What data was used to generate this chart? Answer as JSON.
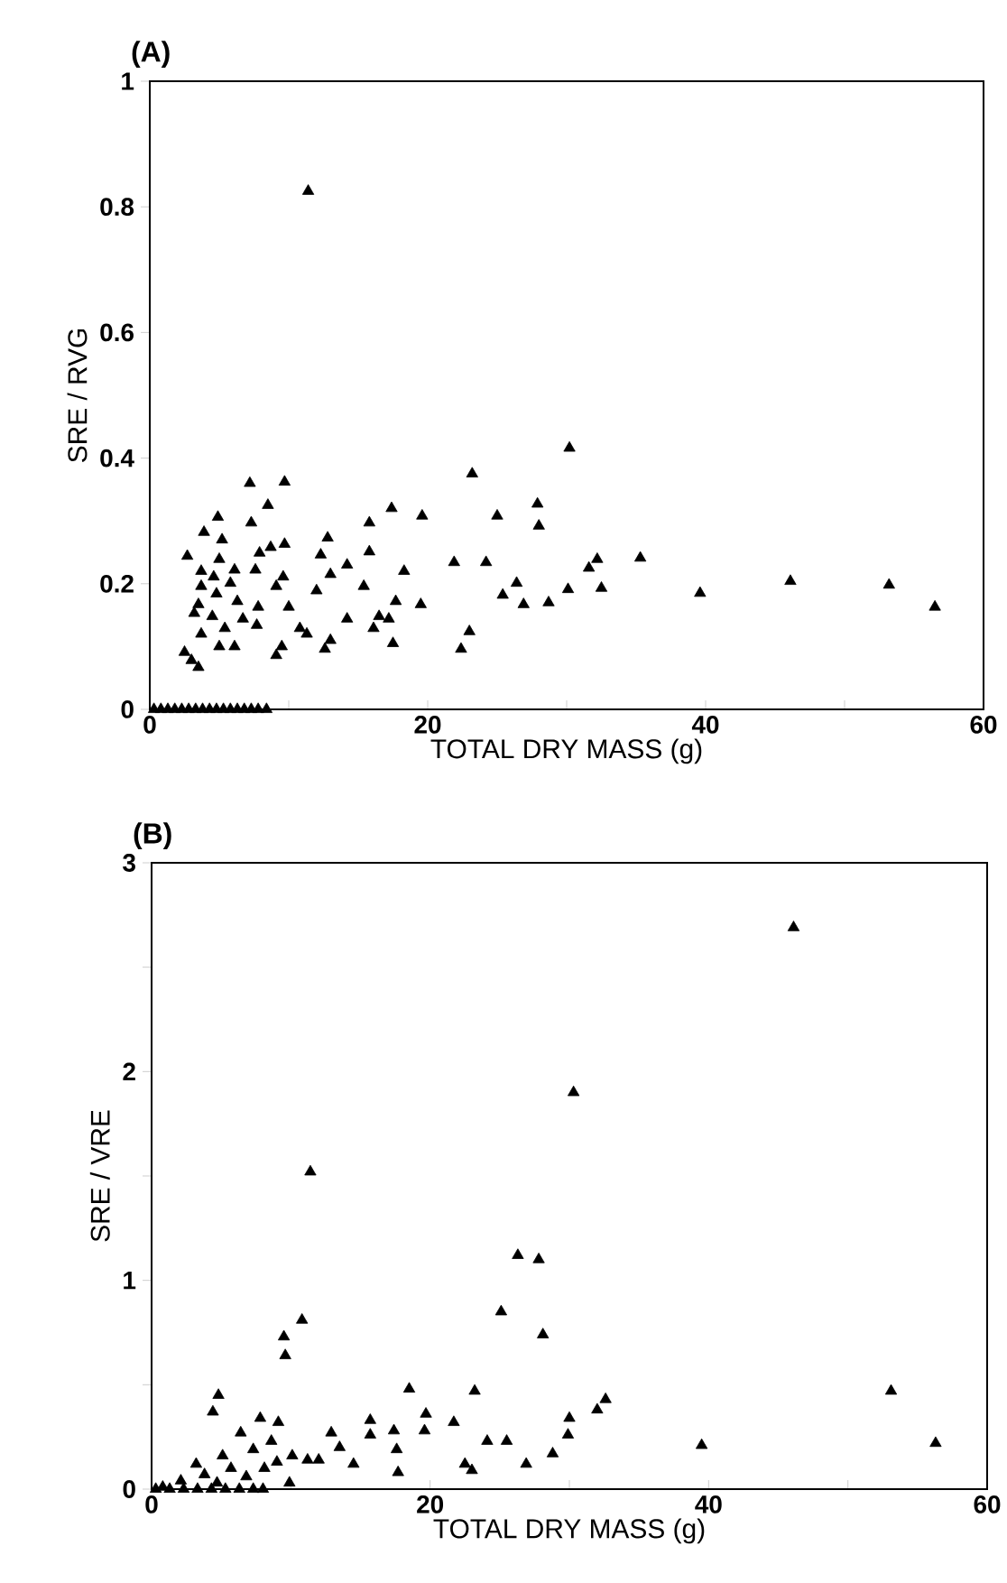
{
  "chart_data": [
    {
      "type": "scatter",
      "title": "(A)",
      "xlabel": "TOTAL DRY MASS (g)",
      "ylabel": "SRE / RVG",
      "xlim": [
        0,
        60
      ],
      "ylim": [
        0,
        1
      ],
      "xticks": [
        0,
        {
          "value": 10,
          "label": null
        },
        20,
        {
          "value": 30,
          "label": null
        },
        40,
        {
          "value": 50,
          "label": null
        },
        60
      ],
      "yticks": [
        0,
        0.2,
        0.4,
        0.6,
        0.8,
        1
      ],
      "grid": false,
      "marker": "triangle",
      "series": [
        {
          "color": "#000000",
          "x": [
            11.4,
            30.2,
            23.2,
            19.6,
            17.4,
            15.8,
            25.0,
            27.9,
            28.0,
            21.9,
            24.2,
            35.3,
            32.2,
            31.6,
            32.5,
            30.1,
            26.4,
            25.4,
            26.9,
            28.7,
            39.6,
            46.1,
            53.2,
            56.5,
            18.3,
            17.7,
            19.5,
            17.2,
            16.1,
            16.5,
            17.5,
            23.0,
            22.4,
            14.2,
            15.4,
            14.2,
            15.8,
            13.0,
            12.8,
            12.3,
            12.0,
            10.8,
            11.3,
            9.5,
            9.1,
            13.0,
            12.6,
            10.0,
            9.6,
            9.7,
            8.7,
            8.5,
            9.7,
            7.2,
            7.3,
            7.9,
            7.6,
            9.1,
            7.8,
            7.7,
            6.3,
            5.8,
            6.1,
            5.0,
            5.2,
            4.9,
            3.9,
            2.7,
            3.7,
            3.7,
            3.5,
            3.2,
            4.5,
            3.7,
            5.4,
            5.0,
            6.1,
            2.5,
            3.0,
            3.5,
            4.8,
            6.7,
            4.6,
            0.3,
            0.8,
            1.3,
            1.8,
            2.3,
            2.8,
            3.3,
            3.8,
            4.3,
            4.8,
            5.3,
            5.8,
            6.3,
            6.8,
            7.3,
            7.8,
            8.4
          ],
          "values": [
            0.825,
            0.416,
            0.375,
            0.308,
            0.32,
            0.297,
            0.308,
            0.327,
            0.292,
            0.234,
            0.234,
            0.241,
            0.239,
            0.225,
            0.193,
            0.191,
            0.201,
            0.182,
            0.167,
            0.17,
            0.185,
            0.204,
            0.198,
            0.163,
            0.22,
            0.172,
            0.167,
            0.144,
            0.129,
            0.148,
            0.105,
            0.124,
            0.096,
            0.144,
            0.196,
            0.23,
            0.251,
            0.215,
            0.273,
            0.246,
            0.189,
            0.129,
            0.12,
            0.1,
            0.086,
            0.11,
            0.096,
            0.163,
            0.211,
            0.263,
            0.258,
            0.325,
            0.362,
            0.36,
            0.297,
            0.249,
            0.222,
            0.196,
            0.163,
            0.134,
            0.172,
            0.201,
            0.222,
            0.239,
            0.27,
            0.306,
            0.282,
            0.244,
            0.22,
            0.196,
            0.167,
            0.153,
            0.148,
            0.12,
            0.129,
            0.1,
            0.1,
            0.091,
            0.078,
            0.067,
            0.184,
            0.144,
            0.211,
            0,
            0,
            0,
            0,
            0,
            0,
            0,
            0,
            0,
            0,
            0,
            0,
            0,
            0,
            0,
            0,
            0
          ]
        }
      ]
    },
    {
      "type": "scatter",
      "title": "(B)",
      "xlabel": "TOTAL DRY MASS (g)",
      "ylabel": "SRE / VRE",
      "xlim": [
        0,
        60
      ],
      "ylim": [
        0,
        3
      ],
      "xticks": [
        0,
        {
          "value": 10,
          "label": null
        },
        20,
        {
          "value": 30,
          "label": null
        },
        40,
        {
          "value": 50,
          "label": null
        },
        60
      ],
      "yticks": [
        0,
        {
          "value": 0.5,
          "label": null
        },
        1,
        {
          "value": 1.5,
          "label": null
        },
        2,
        {
          "value": 2.5,
          "label": null
        },
        3
      ],
      "grid": false,
      "marker": "triangle",
      "series": [
        {
          "color": "#000000",
          "x": [
            46.1,
            30.3,
            11.4,
            26.3,
            27.8,
            25.1,
            28.1,
            10.8,
            9.5,
            9.6,
            4.8,
            4.4,
            18.5,
            23.2,
            53.1,
            32.6,
            32.0,
            30.0,
            29.9,
            19.7,
            19.6,
            21.7,
            24.1,
            25.5,
            28.8,
            26.9,
            22.5,
            23.0,
            39.5,
            56.3,
            15.7,
            15.7,
            17.4,
            17.6,
            17.7,
            12.9,
            13.5,
            14.5,
            12.0,
            7.8,
            9.1,
            8.6,
            6.4,
            9.9,
            10.1,
            7.3,
            5.1,
            3.2,
            3.8,
            5.7,
            6.8,
            8.1,
            2.1,
            0.8,
            4.7,
            11.2,
            9.0,
            0.3,
            1.3,
            2.3,
            3.3,
            4.3,
            5.3,
            6.3,
            7.3,
            8.0
          ],
          "values": [
            2.69,
            1.9,
            1.52,
            1.12,
            1.1,
            0.85,
            0.74,
            0.81,
            0.73,
            0.64,
            0.45,
            0.37,
            0.48,
            0.47,
            0.47,
            0.43,
            0.38,
            0.34,
            0.26,
            0.36,
            0.28,
            0.32,
            0.23,
            0.23,
            0.17,
            0.12,
            0.12,
            0.09,
            0.21,
            0.22,
            0.33,
            0.26,
            0.28,
            0.19,
            0.08,
            0.27,
            0.2,
            0.12,
            0.14,
            0.34,
            0.32,
            0.23,
            0.27,
            0.03,
            0.16,
            0.19,
            0.16,
            0.12,
            0.07,
            0.1,
            0.06,
            0.1,
            0.04,
            0.01,
            0.03,
            0.14,
            0.13,
            0,
            0,
            0,
            0,
            0,
            0,
            0,
            0,
            0
          ]
        }
      ]
    }
  ]
}
